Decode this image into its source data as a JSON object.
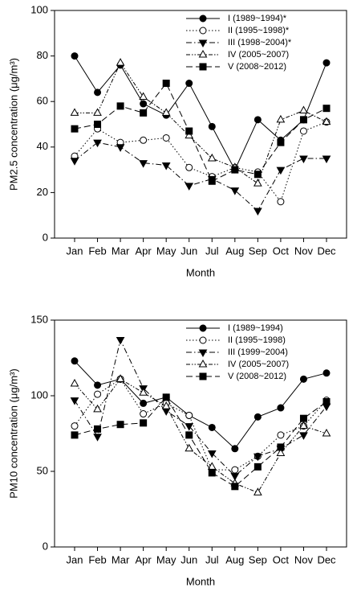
{
  "chart_data": [
    {
      "type": "line",
      "x_label": "Month",
      "y_label": "PM2.5 concentration (μg/m³)",
      "categories": [
        "Jan",
        "Feb",
        "Mar",
        "Apr",
        "May",
        "Jun",
        "Jul",
        "Aug",
        "Sep",
        "Oct",
        "Nov",
        "Dec"
      ],
      "ylim": [
        0,
        100
      ],
      "yticks": [
        0,
        20,
        40,
        60,
        80,
        100
      ],
      "legend": "upper right",
      "series": [
        {
          "name": "I (1989~1994)*",
          "color": "#000000",
          "marker": "circle-filled",
          "line_style": "solid",
          "values": [
            80,
            64,
            76,
            59,
            54,
            68,
            49,
            30,
            52,
            43,
            52,
            77
          ]
        },
        {
          "name": "II (1995~1998)*",
          "color": "#000000",
          "marker": "circle-open",
          "line_style": "dotted",
          "values": [
            36,
            48,
            42,
            43,
            44,
            31,
            27,
            31,
            29,
            16,
            47,
            51
          ]
        },
        {
          "name": "III (1998~2004)*",
          "color": "#000000",
          "marker": "triangle-down-filled",
          "line_style": "dashdot",
          "values": [
            34,
            42,
            40,
            33,
            32,
            23,
            26,
            21,
            12,
            30,
            35,
            35
          ]
        },
        {
          "name": "IV (2005~2007)",
          "color": "#000000",
          "marker": "triangle-up-open",
          "line_style": "dashdotdot",
          "values": [
            55,
            55,
            77,
            62,
            55,
            45,
            35,
            31,
            24,
            52,
            56,
            51
          ]
        },
        {
          "name": "V (2008~2012)",
          "color": "#000000",
          "marker": "square-filled",
          "line_style": "dashed",
          "values": [
            48,
            50,
            58,
            55,
            68,
            47,
            25,
            30,
            28,
            42,
            52,
            57
          ]
        }
      ]
    },
    {
      "type": "line",
      "x_label": "Month",
      "y_label": "PM10 concentration (μg/m³)",
      "categories": [
        "Jan",
        "Feb",
        "Mar",
        "Apr",
        "May",
        "Jun",
        "Jul",
        "Aug",
        "Sep",
        "Oct",
        "Nov",
        "Dec"
      ],
      "ylim": [
        0,
        150
      ],
      "yticks": [
        0,
        50,
        100,
        150
      ],
      "legend": "upper right",
      "series": [
        {
          "name": "I (1989~1994)",
          "color": "#000000",
          "marker": "circle-filled",
          "line_style": "solid",
          "values": [
            123,
            107,
            111,
            95,
            99,
            87,
            79,
            65,
            86,
            92,
            111,
            115
          ]
        },
        {
          "name": "II (1995~1998)",
          "color": "#000000",
          "marker": "circle-open",
          "line_style": "dotted",
          "values": [
            80,
            101,
            111,
            88,
            95,
            87,
            51,
            51,
            60,
            74,
            80,
            97
          ]
        },
        {
          "name": "III (1999~2004)",
          "color": "#000000",
          "marker": "triangle-down-filled",
          "line_style": "dashdot",
          "values": [
            97,
            73,
            137,
            105,
            90,
            80,
            62,
            47,
            60,
            65,
            74,
            93
          ]
        },
        {
          "name": "IV (2005~2007)",
          "color": "#000000",
          "marker": "triangle-up-open",
          "line_style": "dashdotdot",
          "values": [
            108,
            91,
            111,
            102,
            93,
            65,
            53,
            42,
            36,
            62,
            80,
            75
          ]
        },
        {
          "name": "V (2008~2012)",
          "color": "#000000",
          "marker": "square-filled",
          "line_style": "dashed",
          "values": [
            74,
            78,
            81,
            82,
            99,
            74,
            49,
            40,
            53,
            66,
            85,
            96
          ]
        }
      ]
    }
  ]
}
